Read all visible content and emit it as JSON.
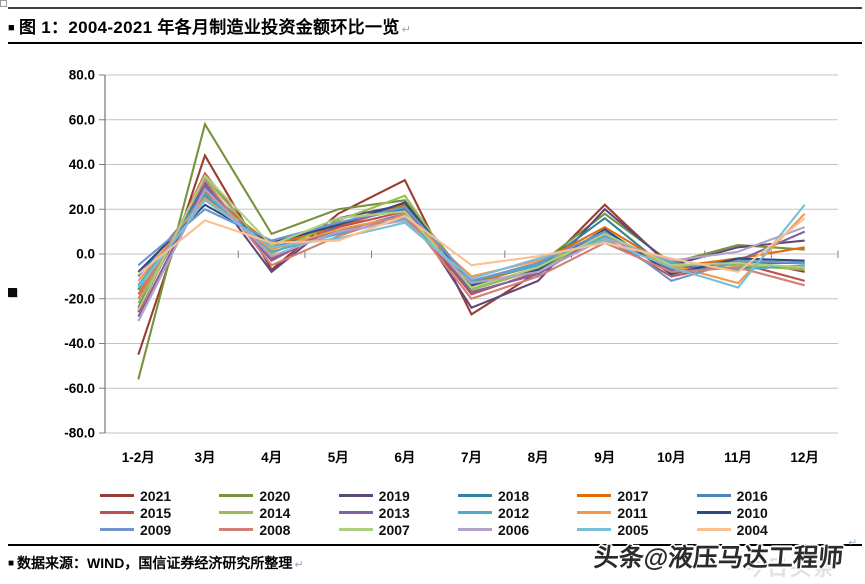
{
  "page": {
    "title_bullet": "■",
    "title": "图 1：2004-2021 年各月制造业投资金额环比一览",
    "title_return": "↵",
    "footer_bullet": "■",
    "footer_text": "数据来源：WIND，国信证券经济研究所整理",
    "footer_return": "↵",
    "watermark": "头条@液压马达工程师",
    "watermark_ghost": "今日头条",
    "paragraph_return": "↵"
  },
  "chart_data": {
    "type": "line",
    "title": "2004-2021 年各月制造业投资金额环比一览",
    "xlabel": "",
    "ylabel": "",
    "categories": [
      "1-2月",
      "3月",
      "4月",
      "5月",
      "6月",
      "7月",
      "8月",
      "9月",
      "10月",
      "11月",
      "12月"
    ],
    "ylim": [
      -80,
      80
    ],
    "ytick_step": 20,
    "ytick_decimals": 1,
    "grid": true,
    "legend_position": "bottom",
    "axis_color": "#7f7f7f",
    "gridline_color": "#c3c3c3",
    "series": [
      {
        "name": "2021",
        "color": "#9A3C35",
        "values": [
          -45,
          44,
          -7,
          18,
          33,
          -27,
          -8,
          22,
          -6,
          -2,
          -8
        ]
      },
      {
        "name": "2020",
        "color": "#77933C",
        "values": [
          -56,
          58,
          9,
          20,
          24,
          -13,
          -5,
          18,
          -4,
          4,
          2
        ]
      },
      {
        "name": "2019",
        "color": "#5F497A",
        "values": [
          -24,
          32,
          -8,
          16,
          22,
          -24,
          -12,
          20,
          -5,
          3,
          6
        ]
      },
      {
        "name": "2018",
        "color": "#31849B",
        "values": [
          -16,
          30,
          2,
          14,
          20,
          -16,
          -6,
          16,
          -8,
          -4,
          -4
        ]
      },
      {
        "name": "2017",
        "color": "#E36C0A",
        "values": [
          -18,
          28,
          4,
          12,
          22,
          -14,
          -4,
          12,
          -6,
          -2,
          3
        ]
      },
      {
        "name": "2016",
        "color": "#4F81BD",
        "values": [
          -10,
          26,
          3,
          10,
          18,
          -15,
          -6,
          10,
          -8,
          -6,
          -6
        ]
      },
      {
        "name": "2015",
        "color": "#C0504D",
        "values": [
          -26,
          36,
          -2,
          12,
          19,
          -18,
          -8,
          7,
          -10,
          -4,
          -12
        ]
      },
      {
        "name": "2014",
        "color": "#9BBB59",
        "values": [
          -22,
          34,
          0,
          15,
          26,
          -16,
          -7,
          8,
          -6,
          -5,
          -7
        ]
      },
      {
        "name": "2013",
        "color": "#8064A2",
        "values": [
          -28,
          31,
          -3,
          13,
          21,
          -17,
          -9,
          9,
          -7,
          -3,
          10
        ]
      },
      {
        "name": "2012",
        "color": "#4BACC6",
        "values": [
          -14,
          27,
          1,
          9,
          16,
          -12,
          -5,
          8,
          -4,
          -7,
          -5
        ]
      },
      {
        "name": "2011",
        "color": "#F79646",
        "values": [
          -12,
          25,
          2,
          11,
          17,
          -10,
          -3,
          6,
          -5,
          -13,
          18
        ]
      },
      {
        "name": "2010",
        "color": "#2A4D7E",
        "values": [
          -8,
          22,
          5,
          13,
          23,
          -14,
          -7,
          11,
          -9,
          -2,
          -3
        ]
      },
      {
        "name": "2009",
        "color": "#7293CB",
        "values": [
          -5,
          20,
          6,
          14,
          21,
          -12,
          -4,
          10,
          -12,
          -3,
          -4
        ]
      },
      {
        "name": "2008",
        "color": "#D08077",
        "values": [
          -20,
          33,
          -5,
          8,
          18,
          -20,
          -10,
          5,
          -8,
          -6,
          -14
        ]
      },
      {
        "name": "2007",
        "color": "#AECF80",
        "values": [
          -25,
          35,
          4,
          16,
          19,
          -15,
          -6,
          9,
          -5,
          -4,
          -6
        ]
      },
      {
        "name": "2006",
        "color": "#B3A2C7",
        "values": [
          -30,
          29,
          -1,
          10,
          15,
          -13,
          -8,
          7,
          -3,
          1,
          12
        ]
      },
      {
        "name": "2005",
        "color": "#77BFD6",
        "values": [
          -15,
          24,
          3,
          7,
          14,
          -11,
          -2,
          6,
          -6,
          -15,
          22
        ]
      },
      {
        "name": "2004",
        "color": "#FAC090",
        "values": [
          -9,
          15,
          5,
          6,
          17,
          -5,
          -1,
          5,
          -2,
          -8,
          16
        ]
      }
    ]
  }
}
